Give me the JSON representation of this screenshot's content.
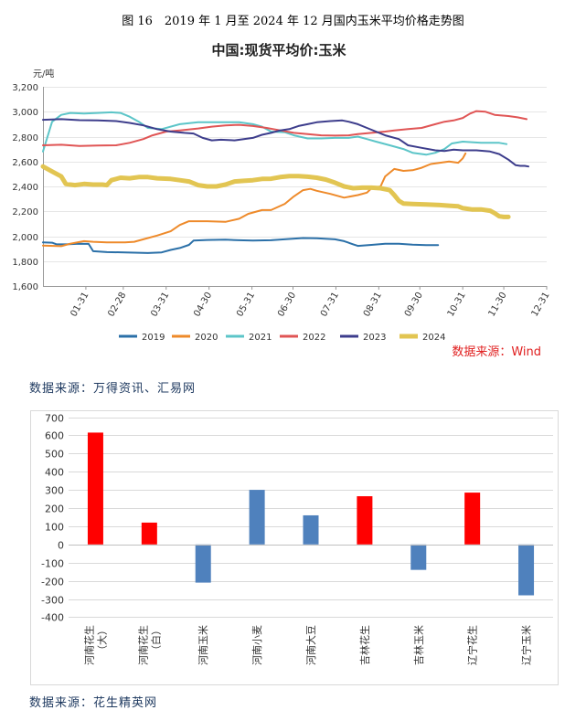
{
  "figure_caption": "图 16　2019 年 1 月至 2024 年 12 月国内玉米平均价格走势图",
  "source_note_1": "数据来源：万得资讯、汇易网",
  "source_note_2": "数据来源：花生精英网",
  "chart_data": [
    {
      "type": "line",
      "title": "中国:现货平均价:玉米",
      "ylabel": "元/吨",
      "ylim": [
        1600,
        3200
      ],
      "yticks": [
        "1,600",
        "1,800",
        "2,000",
        "2,200",
        "2,400",
        "2,600",
        "2,800",
        "3,000",
        "3,200"
      ],
      "x_ticks": [
        "01-31",
        "02-28",
        "03-31",
        "04-30",
        "05-31",
        "06-30",
        "07-31",
        "08-31",
        "09-30",
        "10-31",
        "11-30",
        "12-31"
      ],
      "source": "数据来源：Wind",
      "legend_position": "bottom",
      "series": [
        {
          "name": "2019",
          "color": "#2b70a8",
          "width": 2,
          "points": [
            [
              0,
              1950
            ],
            [
              10,
              1948
            ],
            [
              15,
              1935
            ],
            [
              25,
              1935
            ],
            [
              40,
              1940
            ],
            [
              50,
              1938
            ],
            [
              55,
              1880
            ],
            [
              70,
              1872
            ],
            [
              90,
              1870
            ],
            [
              100,
              1868
            ],
            [
              115,
              1865
            ],
            [
              130,
              1870
            ],
            [
              140,
              1890
            ],
            [
              150,
              1905
            ],
            [
              160,
              1930
            ],
            [
              165,
              1965
            ],
            [
              180,
              1970
            ],
            [
              200,
              1972
            ],
            [
              215,
              1968
            ],
            [
              230,
              1965
            ],
            [
              250,
              1968
            ],
            [
              270,
              1978
            ],
            [
              285,
              1985
            ],
            [
              300,
              1984
            ],
            [
              320,
              1975
            ],
            [
              330,
              1960
            ],
            [
              340,
              1935
            ],
            [
              345,
              1922
            ],
            [
              360,
              1930
            ],
            [
              375,
              1940
            ],
            [
              390,
              1940
            ],
            [
              405,
              1932
            ],
            [
              420,
              1928
            ],
            [
              433,
              1928
            ]
          ]
        },
        {
          "name": "2020",
          "color": "#ee8a2a",
          "width": 2,
          "points": [
            [
              0,
              1925
            ],
            [
              20,
              1920
            ],
            [
              30,
              1940
            ],
            [
              45,
              1960
            ],
            [
              55,
              1955
            ],
            [
              70,
              1950
            ],
            [
              90,
              1950
            ],
            [
              100,
              1955
            ],
            [
              110,
              1975
            ],
            [
              125,
              2005
            ],
            [
              140,
              2040
            ],
            [
              150,
              2090
            ],
            [
              160,
              2120
            ],
            [
              180,
              2120
            ],
            [
              200,
              2115
            ],
            [
              215,
              2140
            ],
            [
              225,
              2180
            ],
            [
              240,
              2210
            ],
            [
              250,
              2210
            ],
            [
              265,
              2260
            ],
            [
              275,
              2320
            ],
            [
              285,
              2370
            ],
            [
              293,
              2380
            ],
            [
              300,
              2365
            ],
            [
              315,
              2340
            ],
            [
              330,
              2310
            ],
            [
              345,
              2330
            ],
            [
              355,
              2350
            ],
            [
              360,
              2385
            ],
            [
              370,
              2400
            ],
            [
              375,
              2480
            ],
            [
              380,
              2510
            ],
            [
              385,
              2540
            ],
            [
              395,
              2525
            ],
            [
              405,
              2530
            ],
            [
              415,
              2550
            ],
            [
              425,
              2580
            ],
            [
              435,
              2590
            ],
            [
              445,
              2600
            ],
            [
              455,
              2590
            ],
            [
              460,
              2625
            ],
            [
              463,
              2665
            ]
          ]
        },
        {
          "name": "2021",
          "color": "#5cc5c8",
          "width": 2,
          "points": [
            [
              0,
              2680
            ],
            [
              5,
              2800
            ],
            [
              10,
              2920
            ],
            [
              20,
              2975
            ],
            [
              30,
              2990
            ],
            [
              45,
              2985
            ],
            [
              60,
              2990
            ],
            [
              75,
              2995
            ],
            [
              85,
              2990
            ],
            [
              95,
              2960
            ],
            [
              105,
              2920
            ],
            [
              115,
              2870
            ],
            [
              130,
              2860
            ],
            [
              150,
              2900
            ],
            [
              170,
              2915
            ],
            [
              190,
              2915
            ],
            [
              215,
              2915
            ],
            [
              230,
              2900
            ],
            [
              240,
              2880
            ],
            [
              250,
              2840
            ],
            [
              265,
              2835
            ],
            [
              275,
              2810
            ],
            [
              290,
              2785
            ],
            [
              305,
              2785
            ],
            [
              320,
              2790
            ],
            [
              335,
              2790
            ],
            [
              345,
              2800
            ],
            [
              355,
              2780
            ],
            [
              365,
              2760
            ],
            [
              380,
              2730
            ],
            [
              395,
              2700
            ],
            [
              405,
              2670
            ],
            [
              420,
              2655
            ],
            [
              430,
              2670
            ],
            [
              440,
              2700
            ],
            [
              448,
              2745
            ],
            [
              460,
              2760
            ],
            [
              480,
              2750
            ],
            [
              500,
              2750
            ],
            [
              508,
              2740
            ]
          ]
        },
        {
          "name": "2022",
          "color": "#e05555",
          "width": 2,
          "points": [
            [
              0,
              2730
            ],
            [
              20,
              2735
            ],
            [
              40,
              2725
            ],
            [
              60,
              2728
            ],
            [
              80,
              2730
            ],
            [
              95,
              2750
            ],
            [
              110,
              2780
            ],
            [
              120,
              2810
            ],
            [
              135,
              2840
            ],
            [
              150,
              2850
            ],
            [
              170,
              2865
            ],
            [
              185,
              2880
            ],
            [
              200,
              2890
            ],
            [
              215,
              2895
            ],
            [
              230,
              2885
            ],
            [
              245,
              2870
            ],
            [
              260,
              2850
            ],
            [
              275,
              2830
            ],
            [
              290,
              2820
            ],
            [
              305,
              2810
            ],
            [
              320,
              2808
            ],
            [
              335,
              2810
            ],
            [
              345,
              2820
            ],
            [
              360,
              2830
            ],
            [
              375,
              2840
            ],
            [
              385,
              2850
            ],
            [
              400,
              2860
            ],
            [
              415,
              2870
            ],
            [
              430,
              2900
            ],
            [
              440,
              2920
            ],
            [
              450,
              2930
            ],
            [
              460,
              2950
            ],
            [
              468,
              2985
            ],
            [
              475,
              3005
            ],
            [
              485,
              3000
            ],
            [
              495,
              2975
            ],
            [
              510,
              2965
            ],
            [
              520,
              2955
            ],
            [
              530,
              2940
            ]
          ]
        },
        {
          "name": "2023",
          "color": "#3d3d8c",
          "width": 2,
          "points": [
            [
              0,
              2935
            ],
            [
              20,
              2940
            ],
            [
              40,
              2932
            ],
            [
              60,
              2930
            ],
            [
              80,
              2925
            ],
            [
              95,
              2910
            ],
            [
              110,
              2890
            ],
            [
              125,
              2860
            ],
            [
              140,
              2840
            ],
            [
              155,
              2830
            ],
            [
              165,
              2825
            ],
            [
              175,
              2790
            ],
            [
              185,
              2770
            ],
            [
              195,
              2775
            ],
            [
              210,
              2770
            ],
            [
              220,
              2780
            ],
            [
              230,
              2790
            ],
            [
              240,
              2815
            ],
            [
              250,
              2830
            ],
            [
              260,
              2850
            ],
            [
              270,
              2860
            ],
            [
              280,
              2885
            ],
            [
              290,
              2900
            ],
            [
              300,
              2915
            ],
            [
              315,
              2925
            ],
            [
              328,
              2930
            ],
            [
              335,
              2920
            ],
            [
              345,
              2900
            ],
            [
              355,
              2870
            ],
            [
              365,
              2840
            ],
            [
              375,
              2810
            ],
            [
              390,
              2780
            ],
            [
              400,
              2730
            ],
            [
              415,
              2710
            ],
            [
              430,
              2690
            ],
            [
              440,
              2685
            ],
            [
              450,
              2695
            ],
            [
              460,
              2690
            ],
            [
              475,
              2690
            ],
            [
              490,
              2680
            ],
            [
              500,
              2660
            ],
            [
              510,
              2615
            ],
            [
              518,
              2570
            ],
            [
              523,
              2565
            ],
            [
              528,
              2565
            ],
            [
              532,
              2560
            ]
          ]
        },
        {
          "name": "2024",
          "color": "#e2c552",
          "width": 5,
          "points": [
            [
              0,
              2560
            ],
            [
              10,
              2520
            ],
            [
              20,
              2480
            ],
            [
              25,
              2420
            ],
            [
              35,
              2410
            ],
            [
              45,
              2420
            ],
            [
              55,
              2415
            ],
            [
              65,
              2415
            ],
            [
              70,
              2410
            ],
            [
              75,
              2450
            ],
            [
              85,
              2470
            ],
            [
              95,
              2465
            ],
            [
              105,
              2475
            ],
            [
              115,
              2475
            ],
            [
              125,
              2465
            ],
            [
              140,
              2460
            ],
            [
              150,
              2450
            ],
            [
              160,
              2440
            ],
            [
              170,
              2410
            ],
            [
              180,
              2400
            ],
            [
              190,
              2400
            ],
            [
              200,
              2415
            ],
            [
              210,
              2440
            ],
            [
              220,
              2445
            ],
            [
              230,
              2450
            ],
            [
              240,
              2460
            ],
            [
              250,
              2462
            ],
            [
              260,
              2475
            ],
            [
              270,
              2482
            ],
            [
              280,
              2482
            ],
            [
              290,
              2478
            ],
            [
              300,
              2470
            ],
            [
              310,
              2455
            ],
            [
              320,
              2430
            ],
            [
              330,
              2400
            ],
            [
              340,
              2385
            ],
            [
              350,
              2390
            ],
            [
              360,
              2390
            ],
            [
              370,
              2385
            ],
            [
              380,
              2370
            ],
            [
              385,
              2330
            ],
            [
              390,
              2285
            ],
            [
              395,
              2262
            ],
            [
              405,
              2258
            ],
            [
              420,
              2255
            ],
            [
              435,
              2250
            ],
            [
              445,
              2245
            ],
            [
              455,
              2240
            ],
            [
              460,
              2225
            ],
            [
              470,
              2215
            ],
            [
              480,
              2215
            ],
            [
              490,
              2205
            ],
            [
              495,
              2185
            ],
            [
              500,
              2160
            ],
            [
              505,
              2155
            ],
            [
              510,
              2155
            ]
          ]
        }
      ]
    },
    {
      "type": "bar",
      "ylim": [
        -400,
        700
      ],
      "yticks": [
        "700",
        "600",
        "500",
        "400",
        "300",
        "200",
        "100",
        "0",
        "-100",
        "-200",
        "-300",
        "-400"
      ],
      "categories": [
        [
          "河南花生",
          "（大）"
        ],
        [
          "河南花生",
          "（白）"
        ],
        [
          "河南玉米"
        ],
        [
          "河南小麦"
        ],
        [
          "河南大豆"
        ],
        [
          "吉林花生"
        ],
        [
          "吉林玉米"
        ],
        [
          "辽宁花生"
        ],
        [
          "辽宁玉米"
        ]
      ],
      "values": [
        615,
        120,
        -210,
        300,
        160,
        265,
        -140,
        285,
        -280
      ],
      "colors": [
        "#ff0000",
        "#ff0000",
        "#4f81bd",
        "#4f81bd",
        "#4f81bd",
        "#ff0000",
        "#4f81bd",
        "#ff0000",
        "#4f81bd"
      ]
    }
  ]
}
